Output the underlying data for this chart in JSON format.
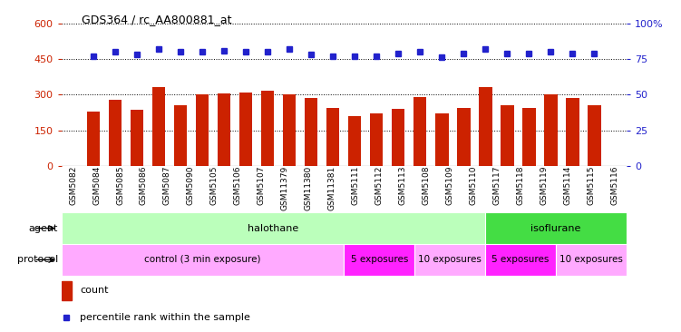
{
  "title": "GDS364 / rc_AA800881_at",
  "samples": [
    "GSM5082",
    "GSM5084",
    "GSM5085",
    "GSM5086",
    "GSM5087",
    "GSM5090",
    "GSM5105",
    "GSM5106",
    "GSM5107",
    "GSM11379",
    "GSM11380",
    "GSM11381",
    "GSM5111",
    "GSM5112",
    "GSM5113",
    "GSM5108",
    "GSM5109",
    "GSM5110",
    "GSM5117",
    "GSM5118",
    "GSM5119",
    "GSM5114",
    "GSM5115",
    "GSM5116"
  ],
  "counts": [
    230,
    280,
    235,
    330,
    255,
    300,
    305,
    310,
    315,
    300,
    285,
    245,
    210,
    220,
    240,
    290,
    220,
    245,
    330,
    255,
    245,
    300,
    285,
    255
  ],
  "percentiles": [
    77,
    80,
    78,
    82,
    80,
    80,
    81,
    80,
    80,
    82,
    78,
    77,
    77,
    77,
    79,
    80,
    76,
    79,
    82,
    79,
    79,
    80,
    79,
    79
  ],
  "ylim_left": [
    0,
    600
  ],
  "ylim_right": [
    0,
    100
  ],
  "yticks_left": [
    0,
    150,
    300,
    450,
    600
  ],
  "yticks_right": [
    0,
    25,
    50,
    75,
    100
  ],
  "ytick_labels_left": [
    "0",
    "150",
    "300",
    "450",
    "600"
  ],
  "ytick_labels_right": [
    "0",
    "25",
    "50",
    "75",
    "100%"
  ],
  "bar_color": "#CC2200",
  "dot_color": "#2222CC",
  "agent_groups": [
    {
      "label": "halothane",
      "start": 0,
      "end": 18,
      "color": "#BBFFBB"
    },
    {
      "label": "isoflurane",
      "start": 18,
      "end": 24,
      "color": "#44DD44"
    }
  ],
  "protocol_groups": [
    {
      "label": "control (3 min exposure)",
      "start": 0,
      "end": 12,
      "color": "#FFAAFF"
    },
    {
      "label": "5 exposures",
      "start": 12,
      "end": 15,
      "color": "#FF44FF"
    },
    {
      "label": "10 exposures",
      "start": 15,
      "end": 18,
      "color": "#FFAAFF"
    },
    {
      "label": "5 exposures",
      "start": 18,
      "end": 21,
      "color": "#FF44FF"
    },
    {
      "label": "10 exposures",
      "start": 21,
      "end": 24,
      "color": "#FFAAFF"
    }
  ],
  "legend_count_label": "count",
  "legend_pct_label": "percentile rank within the sample",
  "agent_label": "agent",
  "protocol_label": "protocol"
}
